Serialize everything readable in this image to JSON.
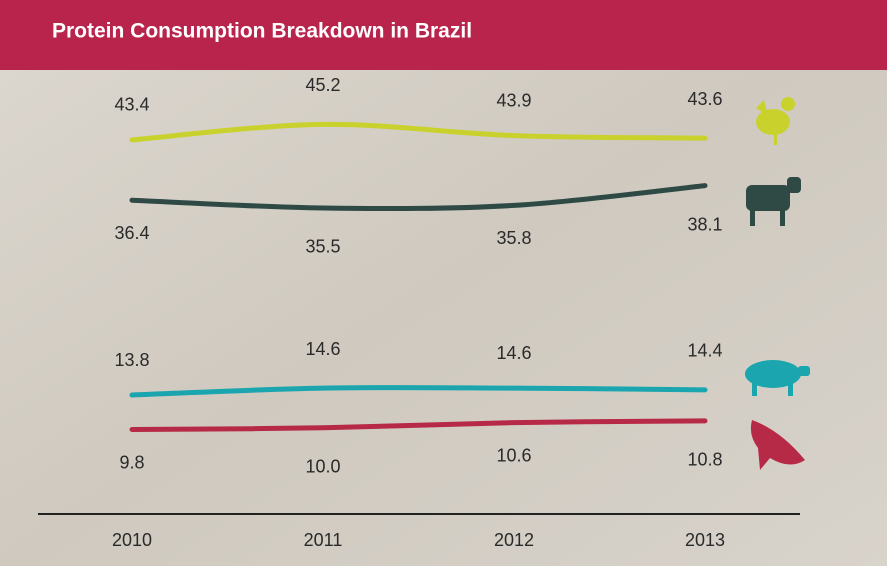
{
  "chart_data": {
    "type": "line",
    "title": "Protein Consumption Breakdown in Brazil",
    "categories": [
      "2010",
      "2011",
      "2012",
      "2013"
    ],
    "series": [
      {
        "color": "#c9d22c",
        "values": [
          43.4,
          45.2,
          43.9,
          43.6
        ],
        "value_labels": [
          "43.4",
          "45.2",
          "43.9",
          "43.6"
        ]
      },
      {
        "color": "#2f4a45",
        "values": [
          36.4,
          35.5,
          35.8,
          38.1
        ],
        "value_labels": [
          "36.4",
          "35.5",
          "35.8",
          "38.1"
        ]
      },
      {
        "color": "#1ba5ae",
        "values": [
          13.8,
          14.6,
          14.6,
          14.4
        ],
        "value_labels": [
          "13.8",
          "14.6",
          "14.6",
          "14.4"
        ]
      },
      {
        "color": "#b62a47",
        "values": [
          9.8,
          10.0,
          10.6,
          10.8
        ],
        "value_labels": [
          "9.8",
          "10.0",
          "10.6",
          "10.8"
        ]
      }
    ],
    "ylim": [
      0,
      50
    ]
  }
}
